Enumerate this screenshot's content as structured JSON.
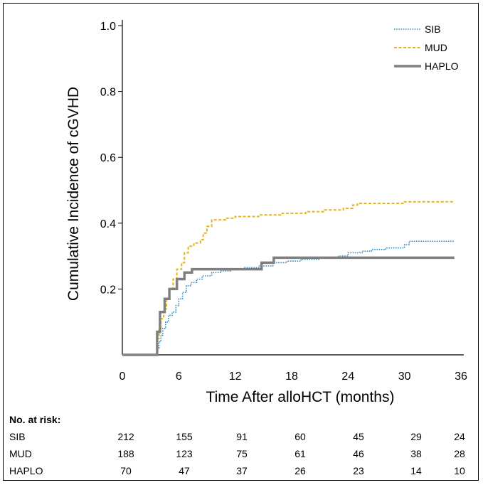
{
  "chart_data": {
    "type": "line",
    "xlabel": "Time After alloHCT (months)",
    "ylabel": "Cumulative Incidence of cGVHD",
    "xlim": [
      0,
      36
    ],
    "ylim": [
      0,
      1.0
    ],
    "x_ticks": [
      "0",
      "6",
      "12",
      "18",
      "24",
      "30",
      "36"
    ],
    "y_ticks": [
      "0.2",
      "0.4",
      "0.6",
      "0.8",
      "1.0"
    ],
    "legend_position": "top-right",
    "series": [
      {
        "name": "SIB",
        "color": "#2e8fc6",
        "style": "dotted",
        "points": [
          [
            0,
            0
          ],
          [
            3.7,
            0
          ],
          [
            3.7,
            0.02
          ],
          [
            3.9,
            0.04
          ],
          [
            4.1,
            0.06
          ],
          [
            4.3,
            0.08
          ],
          [
            4.6,
            0.1
          ],
          [
            4.9,
            0.12
          ],
          [
            5.3,
            0.13
          ],
          [
            5.7,
            0.15
          ],
          [
            6.0,
            0.17
          ],
          [
            6.4,
            0.19
          ],
          [
            6.8,
            0.21
          ],
          [
            7.3,
            0.22
          ],
          [
            7.9,
            0.23
          ],
          [
            8.5,
            0.24
          ],
          [
            9.5,
            0.25
          ],
          [
            10.5,
            0.255
          ],
          [
            11.5,
            0.26
          ],
          [
            13.0,
            0.265
          ],
          [
            14.5,
            0.27
          ],
          [
            16.0,
            0.28
          ],
          [
            17.5,
            0.285
          ],
          [
            19.0,
            0.29
          ],
          [
            21.0,
            0.295
          ],
          [
            23.0,
            0.3
          ],
          [
            24.0,
            0.31
          ],
          [
            25.5,
            0.315
          ],
          [
            26.5,
            0.32
          ],
          [
            28.0,
            0.325
          ],
          [
            30.0,
            0.335
          ],
          [
            30.5,
            0.345
          ],
          [
            35.3,
            0.345
          ]
        ]
      },
      {
        "name": "MUD",
        "color": "#e5b41c",
        "style": "dashed",
        "points": [
          [
            0,
            0
          ],
          [
            3.7,
            0
          ],
          [
            3.7,
            0.05
          ],
          [
            3.9,
            0.08
          ],
          [
            4.1,
            0.11
          ],
          [
            4.4,
            0.14
          ],
          [
            4.7,
            0.17
          ],
          [
            5.0,
            0.2
          ],
          [
            5.4,
            0.23
          ],
          [
            5.8,
            0.26
          ],
          [
            6.3,
            0.28
          ],
          [
            6.6,
            0.31
          ],
          [
            7.0,
            0.33
          ],
          [
            7.6,
            0.34
          ],
          [
            8.3,
            0.35
          ],
          [
            8.6,
            0.37
          ],
          [
            9.0,
            0.39
          ],
          [
            9.5,
            0.41
          ],
          [
            11.0,
            0.415
          ],
          [
            12.0,
            0.42
          ],
          [
            14.5,
            0.425
          ],
          [
            17.0,
            0.43
          ],
          [
            19.5,
            0.435
          ],
          [
            21.5,
            0.44
          ],
          [
            23.5,
            0.445
          ],
          [
            24.5,
            0.455
          ],
          [
            25.0,
            0.46
          ],
          [
            30.0,
            0.465
          ],
          [
            35.3,
            0.465
          ]
        ]
      },
      {
        "name": "HAPLO",
        "color": "#808080",
        "style": "solid",
        "points": [
          [
            0,
            0
          ],
          [
            3.7,
            0
          ],
          [
            3.7,
            0.07
          ],
          [
            4.0,
            0.13
          ],
          [
            4.5,
            0.17
          ],
          [
            5.0,
            0.2
          ],
          [
            5.8,
            0.23
          ],
          [
            6.6,
            0.25
          ],
          [
            7.4,
            0.26
          ],
          [
            14.8,
            0.28
          ],
          [
            16.1,
            0.295
          ],
          [
            35.3,
            0.295
          ]
        ]
      }
    ]
  },
  "risk_table": {
    "title": "No. at risk:",
    "rows": [
      {
        "label": "SIB",
        "values": [
          "212",
          "155",
          "91",
          "60",
          "45",
          "29",
          "24"
        ]
      },
      {
        "label": "MUD",
        "values": [
          "188",
          "123",
          "75",
          "61",
          "46",
          "38",
          "28"
        ]
      },
      {
        "label": "HAPLO",
        "values": [
          "70",
          "47",
          "37",
          "26",
          "23",
          "14",
          "10"
        ]
      }
    ]
  }
}
